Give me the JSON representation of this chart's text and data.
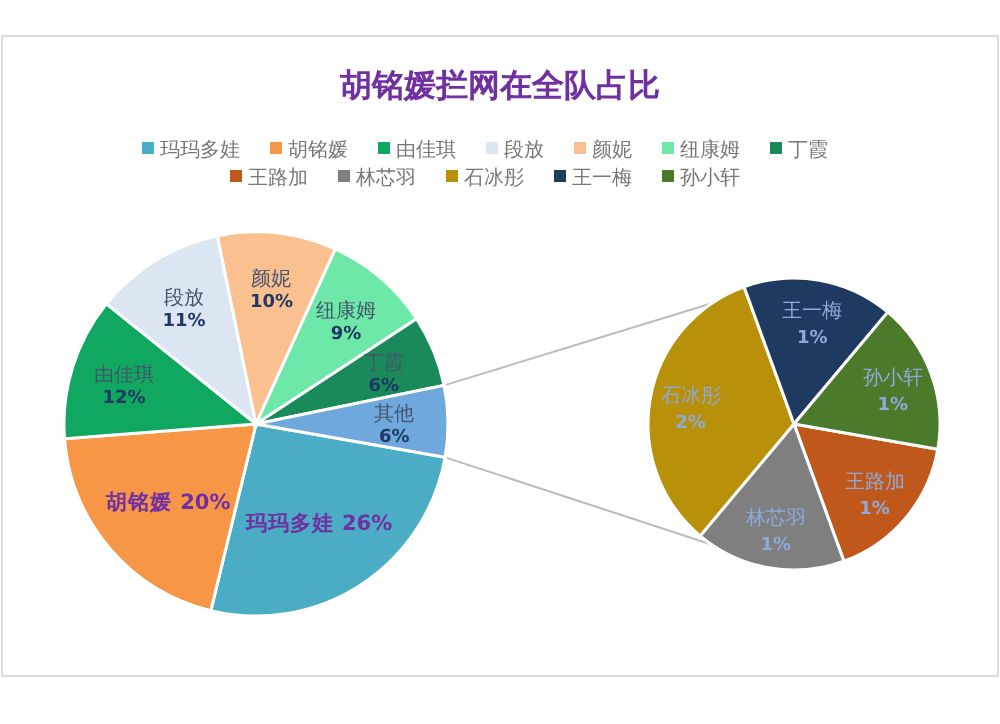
{
  "chart_data": [
    {
      "type": "pie",
      "title": "胡铭媛拦网在全队占比",
      "legend": "top",
      "categories": [
        "玛玛多娃",
        "胡铭媛",
        "由佳琪",
        "段放",
        "颜妮",
        "纽康姆",
        "丁霞",
        "其他"
      ],
      "values": [
        26,
        20,
        12,
        11,
        10,
        9,
        6,
        6
      ],
      "value_labels": [
        "26%",
        "20%",
        "12%",
        "11%",
        "10%",
        "9%",
        "6%",
        "6%"
      ],
      "colors": [
        "#4bacc6",
        "#f79646",
        "#10a860",
        "#dce6f2",
        "#fac090",
        "#6ee8a8",
        "#1a8a5a",
        "#6fa8dc"
      ]
    },
    {
      "type": "pie",
      "legend": "top",
      "categories": [
        "王路加",
        "林芯羽",
        "石冰彤",
        "王一梅",
        "孙小轩"
      ],
      "values": [
        1,
        1,
        2,
        1,
        1
      ],
      "value_labels": [
        "1%",
        "1%",
        "2%",
        "1%",
        "1%"
      ],
      "colors": [
        "#c0581c",
        "#7f7f7f",
        "#b8900a",
        "#1f3a60",
        "#4a7a2a"
      ]
    }
  ]
}
